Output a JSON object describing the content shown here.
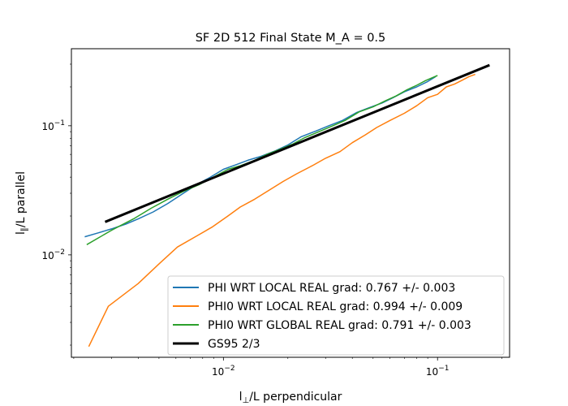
{
  "chart_data": {
    "type": "line",
    "title": "SF 2D 512 Final State M_A = 0.5",
    "xlabel_prefix": "l",
    "xlabel_sub": "⊥",
    "xlabel_suffix": "/L perpendicular",
    "ylabel_prefix": "l",
    "ylabel_sub": "∥",
    "ylabel_suffix": "/L parallel",
    "xscale": "log",
    "yscale": "log",
    "xlim": [
      0.00195,
      0.217
    ],
    "ylim": [
      0.00161,
      0.395
    ],
    "x_major_ticks": [
      {
        "value": 0.01,
        "base": "10",
        "exp": "−2"
      },
      {
        "value": 0.1,
        "base": "10",
        "exp": "−1"
      }
    ],
    "y_major_ticks": [
      {
        "value": 0.01,
        "base": "10",
        "exp": "−2"
      },
      {
        "value": 0.1,
        "base": "10",
        "exp": "−1"
      }
    ],
    "grid": false,
    "legend_position": "lower-right",
    "series": [
      {
        "name": "PHI WRT LOCAL REAL grad: 0.767 +/-  0.003",
        "color": "#1f77b4",
        "width": 1.5,
        "x": [
          0.00225,
          0.0026,
          0.003,
          0.0035,
          0.004,
          0.0047,
          0.0055,
          0.0065,
          0.0075,
          0.0087,
          0.01,
          0.0115,
          0.013,
          0.015,
          0.0175,
          0.02,
          0.023,
          0.027,
          0.031,
          0.036,
          0.042,
          0.048,
          0.055,
          0.062,
          0.07,
          0.08,
          0.09,
          0.098
        ],
        "y": [
          0.0138,
          0.0148,
          0.0159,
          0.0173,
          0.019,
          0.0215,
          0.025,
          0.03,
          0.035,
          0.04,
          0.046,
          0.05,
          0.054,
          0.058,
          0.064,
          0.071,
          0.082,
          0.091,
          0.1,
          0.11,
          0.127,
          0.138,
          0.15,
          0.165,
          0.183,
          0.2,
          0.22,
          0.24
        ]
      },
      {
        "name": "PHI0 WRT LOCAL REAL grad: 0.994 +/-  0.009",
        "color": "#ff7f0e",
        "width": 1.5,
        "x": [
          0.00235,
          0.0029,
          0.004,
          0.005,
          0.0061,
          0.0075,
          0.0089,
          0.0105,
          0.012,
          0.014,
          0.016,
          0.019,
          0.022,
          0.026,
          0.03,
          0.035,
          0.04,
          0.046,
          0.052,
          0.06,
          0.07,
          0.08,
          0.09,
          0.1,
          0.11,
          0.12,
          0.13,
          0.14,
          0.15
        ],
        "y": [
          0.00195,
          0.004,
          0.006,
          0.0085,
          0.0115,
          0.014,
          0.0165,
          0.02,
          0.0235,
          0.027,
          0.031,
          0.037,
          0.0425,
          0.049,
          0.056,
          0.063,
          0.074,
          0.085,
          0.097,
          0.11,
          0.125,
          0.143,
          0.165,
          0.175,
          0.2,
          0.21,
          0.225,
          0.24,
          0.25
        ]
      },
      {
        "name": "PHI0 WRT GLOBAL REAL grad: 0.791 +/-  0.003",
        "color": "#2ca02c",
        "width": 1.5,
        "x": [
          0.0023,
          0.003,
          0.0038,
          0.0046,
          0.0055,
          0.0065,
          0.0077,
          0.009,
          0.0105,
          0.012,
          0.014,
          0.016,
          0.0185,
          0.021,
          0.024,
          0.028,
          0.032,
          0.037,
          0.043,
          0.05,
          0.057,
          0.064,
          0.072,
          0.08,
          0.088,
          0.1
        ],
        "y": [
          0.012,
          0.0155,
          0.019,
          0.023,
          0.027,
          0.031,
          0.035,
          0.04,
          0.046,
          0.049,
          0.054,
          0.06,
          0.066,
          0.072,
          0.081,
          0.09,
          0.099,
          0.11,
          0.128,
          0.14,
          0.156,
          0.17,
          0.19,
          0.206,
          0.224,
          0.245
        ]
      },
      {
        "name": "GS95 2/3",
        "color": "#000000",
        "width": 3,
        "x": [
          0.0028,
          0.175
        ],
        "y": [
          0.018,
          0.295
        ]
      }
    ]
  }
}
